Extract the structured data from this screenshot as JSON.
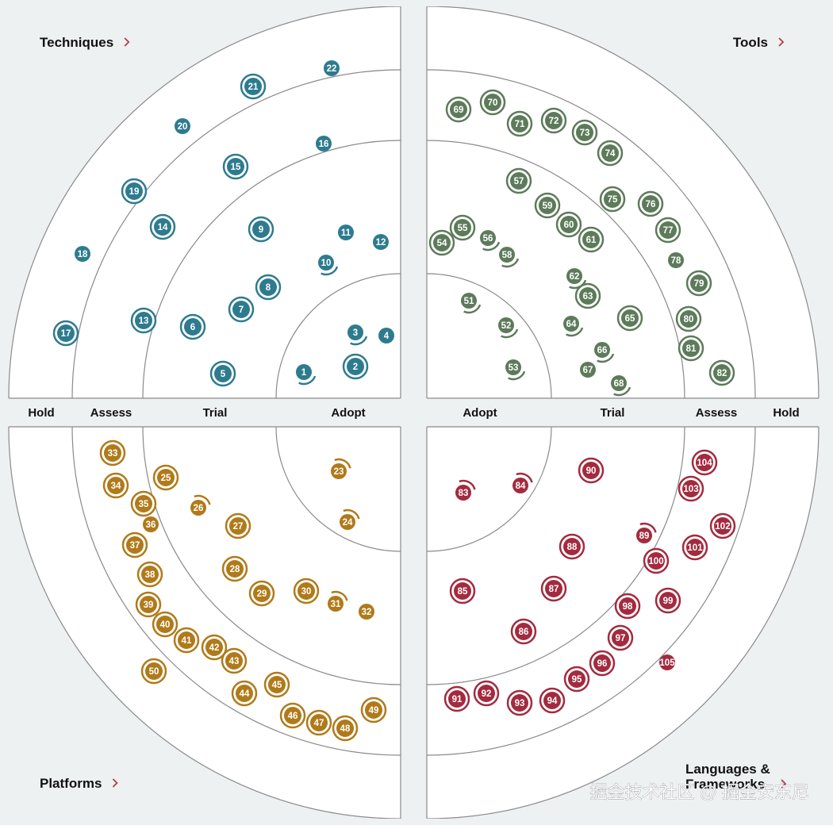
{
  "quadrants": [
    {
      "name": "Techniques",
      "color": "#2e7b8f"
    },
    {
      "name": "Tools",
      "color": "#5d7b5a"
    },
    {
      "name": "Platforms",
      "color": "#b07a1a"
    },
    {
      "name": "Languages & Frameworks",
      "color": "#a32b3f"
    }
  ],
  "ring_labels_left": [
    "Hold",
    "Assess",
    "Trial",
    "Adopt"
  ],
  "ring_labels_right": [
    "Adopt",
    "Trial",
    "Assess",
    "Hold"
  ],
  "watermark": "掘金技术社区 @ 掘金安东尼",
  "blips": {
    "techniques": [
      {
        "n": "1",
        "s": "arc"
      },
      {
        "n": "2",
        "s": "ring"
      },
      {
        "n": "3",
        "s": "arc"
      },
      {
        "n": "4",
        "s": "plain"
      },
      {
        "n": "5",
        "s": "ring"
      },
      {
        "n": "6",
        "s": "ring"
      },
      {
        "n": "7",
        "s": "ring"
      },
      {
        "n": "8",
        "s": "ring"
      },
      {
        "n": "9",
        "s": "ring"
      },
      {
        "n": "10",
        "s": "arc"
      },
      {
        "n": "11",
        "s": "plain"
      },
      {
        "n": "12",
        "s": "plain"
      },
      {
        "n": "13",
        "s": "ring"
      },
      {
        "n": "14",
        "s": "ring"
      },
      {
        "n": "15",
        "s": "ring"
      },
      {
        "n": "16",
        "s": "plain"
      },
      {
        "n": "17",
        "s": "ring"
      },
      {
        "n": "18",
        "s": "plain"
      },
      {
        "n": "19",
        "s": "ring"
      },
      {
        "n": "20",
        "s": "plain"
      },
      {
        "n": "21",
        "s": "ring"
      },
      {
        "n": "22",
        "s": "plain"
      }
    ],
    "tools": [
      {
        "n": "51",
        "s": "arc"
      },
      {
        "n": "52",
        "s": "arc"
      },
      {
        "n": "53",
        "s": "arc"
      },
      {
        "n": "54",
        "s": "ring"
      },
      {
        "n": "55",
        "s": "ring"
      },
      {
        "n": "56",
        "s": "arc"
      },
      {
        "n": "57",
        "s": "ring"
      },
      {
        "n": "58",
        "s": "arc"
      },
      {
        "n": "59",
        "s": "ring"
      },
      {
        "n": "60",
        "s": "ring"
      },
      {
        "n": "61",
        "s": "ring"
      },
      {
        "n": "62",
        "s": "arc"
      },
      {
        "n": "63",
        "s": "ring"
      },
      {
        "n": "64",
        "s": "arc"
      },
      {
        "n": "65",
        "s": "ring"
      },
      {
        "n": "66",
        "s": "arc"
      },
      {
        "n": "67",
        "s": "plain"
      },
      {
        "n": "68",
        "s": "arc"
      },
      {
        "n": "69",
        "s": "ring"
      },
      {
        "n": "70",
        "s": "ring"
      },
      {
        "n": "71",
        "s": "ring"
      },
      {
        "n": "72",
        "s": "ring"
      },
      {
        "n": "73",
        "s": "ring"
      },
      {
        "n": "74",
        "s": "ring"
      },
      {
        "n": "75",
        "s": "ring"
      },
      {
        "n": "76",
        "s": "ring"
      },
      {
        "n": "77",
        "s": "ring"
      },
      {
        "n": "78",
        "s": "plain"
      },
      {
        "n": "79",
        "s": "ring"
      },
      {
        "n": "80",
        "s": "ring"
      },
      {
        "n": "81",
        "s": "ring"
      },
      {
        "n": "82",
        "s": "ring"
      }
    ],
    "platforms": [
      {
        "n": "23",
        "s": "arc"
      },
      {
        "n": "24",
        "s": "arc"
      },
      {
        "n": "25",
        "s": "ring"
      },
      {
        "n": "26",
        "s": "arc"
      },
      {
        "n": "27",
        "s": "ring"
      },
      {
        "n": "28",
        "s": "ring"
      },
      {
        "n": "29",
        "s": "ring"
      },
      {
        "n": "30",
        "s": "ring"
      },
      {
        "n": "31",
        "s": "arc"
      },
      {
        "n": "32",
        "s": "plain"
      },
      {
        "n": "33",
        "s": "ring"
      },
      {
        "n": "34",
        "s": "ring"
      },
      {
        "n": "35",
        "s": "ring"
      },
      {
        "n": "36",
        "s": "plain"
      },
      {
        "n": "37",
        "s": "ring"
      },
      {
        "n": "38",
        "s": "ring"
      },
      {
        "n": "39",
        "s": "ring"
      },
      {
        "n": "40",
        "s": "ring"
      },
      {
        "n": "41",
        "s": "ring"
      },
      {
        "n": "42",
        "s": "ring"
      },
      {
        "n": "43",
        "s": "ring"
      },
      {
        "n": "44",
        "s": "ring"
      },
      {
        "n": "45",
        "s": "ring"
      },
      {
        "n": "46",
        "s": "ring"
      },
      {
        "n": "47",
        "s": "ring"
      },
      {
        "n": "48",
        "s": "ring"
      },
      {
        "n": "49",
        "s": "ring"
      },
      {
        "n": "50",
        "s": "ring"
      }
    ],
    "languages": [
      {
        "n": "83",
        "s": "arc"
      },
      {
        "n": "84",
        "s": "arc"
      },
      {
        "n": "85",
        "s": "ring"
      },
      {
        "n": "86",
        "s": "ring"
      },
      {
        "n": "87",
        "s": "ring"
      },
      {
        "n": "88",
        "s": "ring"
      },
      {
        "n": "89",
        "s": "arc"
      },
      {
        "n": "90",
        "s": "ring"
      },
      {
        "n": "91",
        "s": "ring"
      },
      {
        "n": "92",
        "s": "ring"
      },
      {
        "n": "93",
        "s": "ring"
      },
      {
        "n": "94",
        "s": "ring"
      },
      {
        "n": "95",
        "s": "ring"
      },
      {
        "n": "96",
        "s": "ring"
      },
      {
        "n": "97",
        "s": "ring"
      },
      {
        "n": "98",
        "s": "ring"
      },
      {
        "n": "99",
        "s": "ring"
      },
      {
        "n": "100",
        "s": "ring"
      },
      {
        "n": "101",
        "s": "ring"
      },
      {
        "n": "102",
        "s": "ring"
      },
      {
        "n": "103",
        "s": "ring"
      },
      {
        "n": "104",
        "s": "ring"
      },
      {
        "n": "105",
        "s": "plain"
      }
    ]
  }
}
